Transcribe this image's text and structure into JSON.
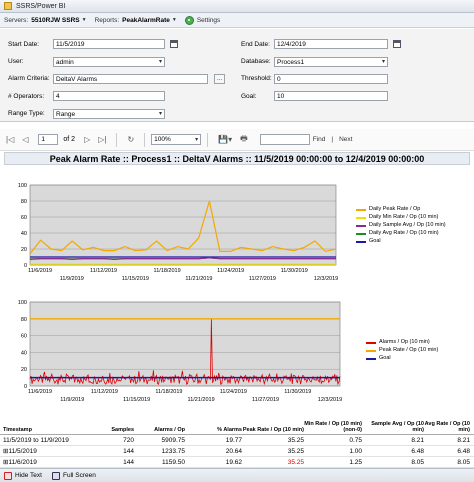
{
  "window": {
    "title": "SSRS/Power BI"
  },
  "serverbar": {
    "servers_label": "Servers:",
    "server_value": "5510RJW SSRS",
    "reports_label": "Reports:",
    "report_value": "PeakAlarmRate",
    "settings_label": "Settings"
  },
  "params": {
    "start_date_label": "Start Date:",
    "start_date": "11/5/2019",
    "end_date_label": "End Date:",
    "end_date": "12/4/2019",
    "user_label": "User:",
    "user": "admin",
    "database_label": "Database:",
    "database": "Process1",
    "alarm_criteria_label": "Alarm Criteria:",
    "alarm_criteria": "DeltaV Alarms",
    "threshold_label": "Threshold:",
    "threshold": "0",
    "operators_label": "# Operators:",
    "operators": "4",
    "goal_label": "Goal:",
    "goal": "10",
    "range_type_label": "Range Type:",
    "range_type": "Range",
    "ellipsis": "..."
  },
  "toolbar": {
    "page": "1",
    "of": "of 2",
    "zoom": "100%",
    "find_label": "Find",
    "separator": "|",
    "next_label": "Next"
  },
  "report": {
    "title": "Peak Alarm Rate :: Process1 :: DeltaV Alarms :: 11/5/2019 00:00:00 to 12/4/2019 00:00:00"
  },
  "chart_data": [
    {
      "type": "line",
      "x_tick_labels_top": [
        "11/6/2019",
        "11/12/2019",
        "11/18/2019",
        "11/24/2019",
        "11/30/2019"
      ],
      "x_tick_labels_bottom": [
        "11/9/2019",
        "11/15/2019",
        "11/21/2019",
        "11/27/2019",
        "12/3/2019"
      ],
      "y_ticks": [
        0,
        20,
        40,
        60,
        80,
        100
      ],
      "ylim": [
        0,
        100
      ],
      "series": [
        {
          "name": "Daily Peak Rate / Op",
          "color": "#f2a900",
          "values": [
            14,
            31,
            20,
            18,
            30,
            19,
            22,
            18,
            18,
            23,
            18,
            19,
            30,
            18,
            23,
            20,
            34,
            80,
            17,
            17,
            22,
            20,
            18,
            23,
            20,
            18,
            22,
            30,
            17,
            20
          ]
        },
        {
          "name": "Daily Min Rate / Op (10 min)",
          "color": "#f0e000",
          "values": [
            1,
            1,
            1,
            1,
            1,
            1,
            1,
            1,
            1,
            1,
            1,
            1,
            1,
            1,
            1,
            1,
            1,
            1,
            1,
            1,
            1,
            1,
            1,
            1,
            1,
            1,
            1,
            1,
            1,
            1
          ]
        },
        {
          "name": "Daily Sample Avg / Op (10 min)",
          "color": "#8a2b8f",
          "values": [
            7,
            8,
            8,
            8,
            7,
            8,
            8,
            8,
            7,
            8,
            8,
            8,
            8,
            8,
            8,
            8,
            8,
            9,
            8,
            8,
            8,
            8,
            8,
            8,
            8,
            8,
            8,
            8,
            8,
            8
          ]
        },
        {
          "name": "Daily Avg Rate / Op (10 min)",
          "color": "#1e8c1e",
          "values": [
            7.5,
            8,
            8,
            8,
            7.5,
            8,
            8,
            8,
            7.5,
            8,
            8,
            8,
            8,
            8,
            8,
            8,
            8,
            9,
            8,
            8,
            8,
            8,
            8,
            8,
            8,
            8,
            8,
            8,
            8,
            8
          ]
        },
        {
          "name": "Goal",
          "color": "#1a1aa8",
          "values": [
            10,
            10,
            10,
            10,
            10,
            10,
            10,
            10,
            10,
            10,
            10,
            10,
            10,
            10,
            10,
            10,
            10,
            10,
            10,
            10,
            10,
            10,
            10,
            10,
            10,
            10,
            10,
            10,
            10,
            10
          ]
        }
      ]
    },
    {
      "type": "line",
      "x_tick_labels_top": [
        "11/6/2019",
        "11/12/2019",
        "11/18/2019",
        "11/24/2019",
        "11/30/2019"
      ],
      "x_tick_labels_bottom": [
        "11/9/2019",
        "11/15/2019",
        "11/21/2019",
        "11/27/2019",
        "12/3/2019"
      ],
      "y_ticks": [
        0,
        20,
        40,
        60,
        80,
        100
      ],
      "ylim": [
        0,
        100
      ],
      "series": [
        {
          "name": "Alarms / Op (10 min)",
          "color": "#e00000",
          "spike_day_index": 17,
          "spike_value": 80,
          "typical_range": [
            2,
            20
          ]
        },
        {
          "name": "Peak Rate / Op (10 min)",
          "color": "#f2a900",
          "constant": 80
        },
        {
          "name": "Goal",
          "color": "#1a1aa8",
          "constant": 10
        }
      ]
    }
  ],
  "table": {
    "headers": [
      "Timestamp",
      "Samples",
      "Alarms / Op",
      "% Alarms",
      "Peak Rate / Op (10 min)",
      "Min Rate / Op (10 min) (non-0)",
      "Sample Avg / Op (10 min)",
      "Avg Rate / Op (10 min)"
    ],
    "rows": [
      {
        "cells": [
          "11/5/2019 to 11/9/2019",
          "720",
          "5909.75",
          "19.77",
          "35.25",
          "0.75",
          "8.21",
          "8.21"
        ],
        "peak_red": false
      },
      {
        "cells": [
          "⊞11/5/2019",
          "144",
          "1233.75",
          "20.64",
          "35.25",
          "1.00",
          "6.48",
          "6.48"
        ],
        "peak_red": false
      },
      {
        "cells": [
          "⊞11/6/2019",
          "144",
          "1159.50",
          "19.62",
          "35.25",
          "1.25",
          "8.05",
          "8.05"
        ],
        "peak_red": true
      }
    ]
  },
  "statusbar": {
    "hide_text": "Hide Text",
    "full_screen": "Full Screen"
  }
}
